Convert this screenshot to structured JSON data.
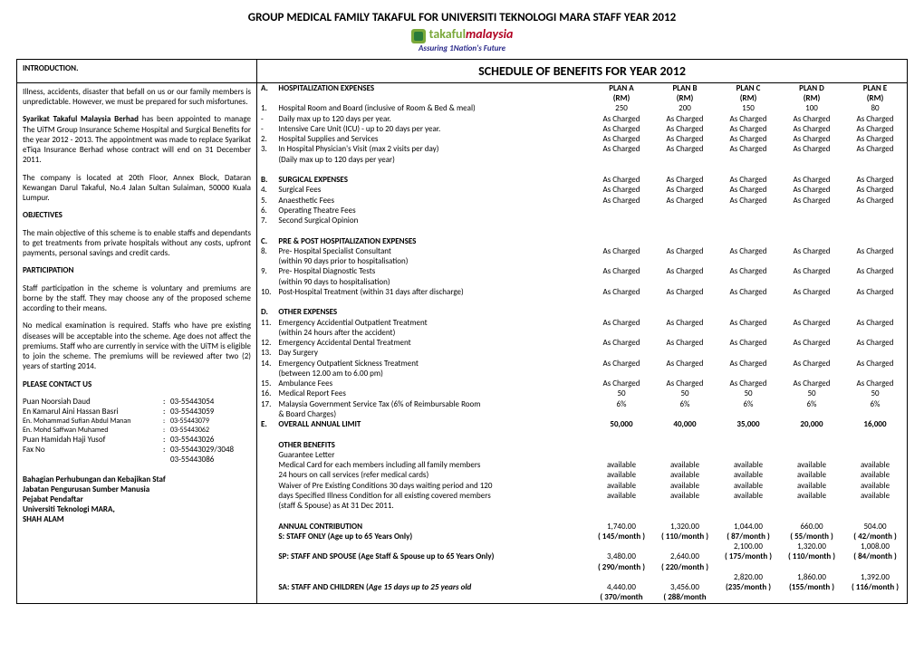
{
  "header": {
    "title": "GROUP MEDICAL FAMILY TAKAFUL FOR UNIVERSITI TEKNOLOGI MARA STAFF YEAR 2012",
    "logo_brand_a": "takaful",
    "logo_brand_b": "malaysia",
    "logo_sub": "Assuring 1Nation's Future"
  },
  "intro_label": "INTRODUCTION",
  "schedule_title": "SCHEDULE OF BENEFITS FOR YEAR 2012",
  "left": {
    "p1": "Illness, accidents, disaster that befall on us or our family members is unpredictable.  However, we must be prepared for such misfortunes.",
    "p2a": "Syarikat Takaful Malaysia Berhad",
    "p2b": " has been appointed to manage The UiTM Group Insurance Scheme Hospital and Surgical Benefits for the year 2012 - 2013. The appointment was made to replace Syarikat eTiqa Insurance Berhad whose contract will end on 31 December 2011.",
    "p3": "The company is located at 20th Floor, Annex Block, Dataran Kewangan Darul  Takaful, No.4 Jalan Sultan Sulaiman, 50000 Kuala Lumpur.",
    "obj_head": "OBJECTIVES",
    "obj_body": "The main objective of this scheme is to enable staffs and dependants to get treatments from private hospitals without any costs, upfront payments, personal savings and credit cards.",
    "part_head": "PARTICIPATION",
    "part_b1": "Staff participation in the scheme is voluntary and premiums are borne by the staff.  They may choose  any  of the proposed scheme according to their means.",
    "part_b2": "No medical examination is required.   Staffs who have pre  existing diseases will be acceptable   into the scheme.  Age does not affect the premiums.  Staff who are currently in  service with the UiTM is eligible to join the scheme. The premiums will be reviewed after two (2) years of starting  2014.",
    "contact_head": "PLEASE CONTACT US",
    "contacts": [
      {
        "name": "Puan Noorsiah Daud",
        "num": "03-55443054"
      },
      {
        "name": "En Kamarul Aini Hassan Basri",
        "num": "03-55443059"
      },
      {
        "name": "En. Mohammad Sufian Abdul Manan",
        "num": "03-55443079"
      },
      {
        "name": "En. Mohd Saffwan Muhamed",
        "num": "03-55443062"
      },
      {
        "name": "Puan Hamidah Haji Yusof",
        "num": "03-55443026"
      },
      {
        "name": "Fax No",
        "num": "03-55443029/3048"
      },
      {
        "name": "",
        "num": "03-55443086"
      }
    ],
    "dept1": "Bahagian Perhubungan dan Kebajikan Staf",
    "dept2": "Jabatan Pengurusan Sumber Manusia",
    "dept3": "Pejabat Pendaftar",
    "dept4": "Universiti Teknologi MARA,",
    "dept5": "SHAH ALAM"
  },
  "plans": {
    "a": {
      "head": "PLAN A",
      "unit": "(RM)"
    },
    "b": {
      "head": "PLAN B",
      "unit": "(RM)"
    },
    "c": {
      "head": "PLAN C",
      "unit": "(RM)"
    },
    "d": {
      "head": "PLAN D",
      "unit": "(RM)"
    },
    "e": {
      "head": "PLAN E",
      "unit": "(RM)"
    }
  },
  "sec": {
    "A": {
      "letter": "A.",
      "title": "HOSPITALIZATION EXPENSES"
    },
    "B": {
      "letter": "B.",
      "title": "SURGICAL EXPENSES"
    },
    "C": {
      "letter": "C.",
      "title": "PRE & POST HOSPITALIZATION EXPENSES"
    },
    "D": {
      "letter": "D.",
      "title": "OTHER EXPENSES"
    },
    "E": {
      "letter": "E.",
      "title": "OVERALL ANNUAL LIMIT"
    }
  },
  "rows": {
    "r1": {
      "n": "1.",
      "d": "Hospital Room and Board (inclusive of Room & Bed  & meal)",
      "a": "250",
      "b": "200",
      "c": "150",
      "dp": "100",
      "e": "80"
    },
    "r1b": {
      "n": "-",
      "d": "Daily max up to 120 days per  year.",
      "a": "As Charged",
      "b": "As Charged",
      "c": "As Charged",
      "dp": "As Charged",
      "e": "As Charged"
    },
    "r1c": {
      "n": "-",
      "d": "Intensive Care Unit (ICU) - up to 20 days per year.",
      "a": "As Charged",
      "b": "As Charged",
      "c": "As Charged",
      "dp": "As Charged",
      "e": "As Charged"
    },
    "r2": {
      "n": "2.",
      "d": "Hospital Supplies and Services",
      "a": "As Charged",
      "b": "As Charged",
      "c": "As Charged",
      "dp": "As Charged",
      "e": "As Charged"
    },
    "r3": {
      "n": "3.",
      "d": "In Hospital Physician's Visit (max 2 visits per day)",
      "a": "As Charged",
      "b": "As Charged",
      "c": "As Charged",
      "dp": "As Charged",
      "e": "As Charged"
    },
    "r3b": {
      "n": "",
      "d": "   (Daily max up to 120 days per year)"
    },
    "r4": {
      "n": "4.",
      "d": "Surgical Fees",
      "a": "As Charged",
      "b": "As Charged",
      "c": "As Charged",
      "dp": "As Charged",
      "e": "As Charged"
    },
    "r5": {
      "n": "5.",
      "d": "Anaesthetic Fees",
      "a": "As Charged",
      "b": "As Charged",
      "c": "As Charged",
      "dp": "As Charged",
      "e": "As Charged"
    },
    "r6": {
      "n": "6.",
      "d": "Operating Theatre Fees",
      "a": "As Charged",
      "b": "As Charged",
      "c": "As Charged",
      "dp": "As Charged",
      "e": "As Charged"
    },
    "r7": {
      "n": "7.",
      "d": "Second Surgical Opinion"
    },
    "r8": {
      "n": "8.",
      "d": "Pre- Hospital Specialist Consultant",
      "a": "As Charged",
      "b": "As Charged",
      "c": "As Charged",
      "dp": "As Charged",
      "e": "As Charged"
    },
    "r8b": {
      "n": "",
      "d": "(within 90 days prior to hospitalisation)"
    },
    "r9": {
      "n": "9.",
      "d": "Pre- Hospital Diagnostic Tests",
      "a": "As Charged",
      "b": "As Charged",
      "c": "As Charged",
      "dp": "As Charged",
      "e": "As Charged"
    },
    "r9b": {
      "n": "",
      "d": "(within 90 days to hospitalisation)"
    },
    "r10": {
      "n": "10.",
      "d": "Post-Hospital Treatment (within 31 days after discharge)",
      "a": "As Charged",
      "b": "As Charged",
      "c": "As Charged",
      "dp": "As Charged",
      "e": "As Charged"
    },
    "r11": {
      "n": "11.",
      "d": "Emergency Accidential Outpatient Treatment",
      "a": "As Charged",
      "b": "As Charged",
      "c": "As Charged",
      "dp": "As Charged",
      "e": "As Charged"
    },
    "r11b": {
      "n": "",
      "d": "   (within 24 hours after the accident)"
    },
    "r12": {
      "n": "12.",
      "d": "Emergency Accidental Dental Treatment",
      "a": "As Charged",
      "b": "As Charged",
      "c": "As Charged",
      "dp": "As Charged",
      "e": "As Charged"
    },
    "r13": {
      "n": "13.",
      "d": "Day Surgery"
    },
    "r14": {
      "n": "14.",
      "d": "Emergency Outpatient Sickness Treatment",
      "a": "As Charged",
      "b": "As Charged",
      "c": "As Charged",
      "dp": "As Charged",
      "e": "As Charged"
    },
    "r14b": {
      "n": "",
      "d": "(between 12.00 am to 6.00 pm)"
    },
    "r15": {
      "n": "15.",
      "d": "Ambulance Fees",
      "a": "As Charged",
      "b": "As Charged",
      "c": "As Charged",
      "dp": "As Charged",
      "e": "As Charged"
    },
    "r16": {
      "n": "16.",
      "d": "Medical Report Fees",
      "a": "50",
      "b": "50",
      "c": "50",
      "dp": "50",
      "e": "50"
    },
    "r17": {
      "n": "17.",
      "d": "Malaysia Government Service Tax (6% of Reimbursable Room",
      "a": "6%",
      "b": "6%",
      "c": "6%",
      "dp": "6%",
      "e": "6%"
    },
    "r17b": {
      "n": "",
      "d": "& Board Charges)"
    },
    "rE": {
      "a": "50,000",
      "b": "40,000",
      "c": "35,000",
      "dp": "20,000",
      "e": "16,000"
    }
  },
  "other": {
    "head": "OTHER  BENEFITS",
    "g": "Guarantee Letter",
    "o1": {
      "d": "Medical Card for each members including all family members",
      "v": "available"
    },
    "o2": {
      "d": "24 hours on call services (refer medical cards)",
      "v": "available"
    },
    "o3": {
      "d": "Waiver of Pre Existing Conditions 30 days waiting period and 120",
      "v": "available"
    },
    "o3b": "days Specified Illness Condition for all existing covered members",
    "o4": {
      "d": "(staff & Spouse) as At 31 Dec 2011.",
      "v": "available"
    }
  },
  "contrib": {
    "head": "ANNUAL CONTRIBUTION",
    "s_label": "S:        STAFF ONLY (Age up to 65 Years Only)",
    "sp_label": "SP:     STAFF AND SPOUSE (Age Staff & Spouse up to 65 Years Only)",
    "sa_label_a": "SA:     STAFF AND CHILDREN (",
    "sa_label_b": "Age 15 days up to 25 years old",
    "s_top": {
      "a": "1,740.00",
      "b": "1,320.00",
      "c": "1,044.00",
      "d": "660.00",
      "e": "504.00"
    },
    "s_mon": {
      "a": "( 145/month )",
      "b": "( 110/month )",
      "c": "(  87/month )",
      "d": "(  55/month )",
      "e": "(  42/month )"
    },
    "sp_top": {
      "a": "3,480.00",
      "b": "2,640.00",
      "c": "2,100.00",
      "d": "1,320.00",
      "e": "1,008.00"
    },
    "sp_mon": {
      "a": "( 290/month )",
      "b": "( 220/month )",
      "c": "( 175/month )",
      "d": "( 110/month )",
      "e": "(  84/month )"
    },
    "sa_top": {
      "a": "4,440.00",
      "b": "3,456.00",
      "c": "2,820.00",
      "d": "1,860.00",
      "e": "1,392.00"
    },
    "sa_mon": {
      "a": "( 370/month",
      "b": "( 288/month",
      "c": "(235/month )",
      "d": "(155/month )",
      "e": "( 116/month )"
    }
  }
}
